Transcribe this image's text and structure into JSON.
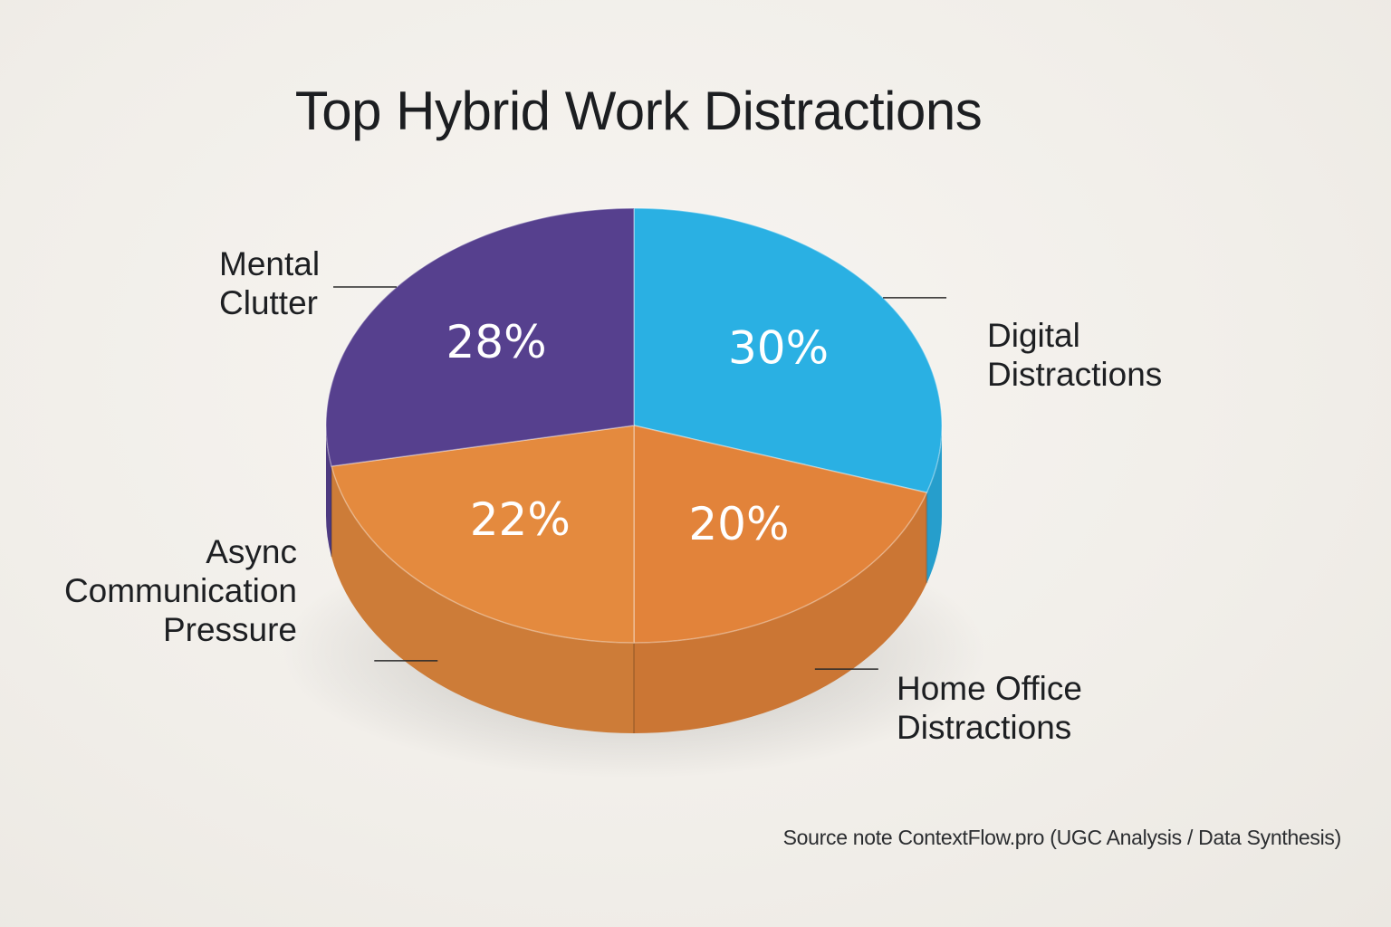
{
  "chart_data": {
    "type": "pie",
    "title": "Top Hybrid Work Distractions",
    "slices": [
      {
        "key": "digital",
        "label_lines": [
          "Digital",
          "Distractions"
        ],
        "value": 30,
        "value_label": "30%",
        "color": "#2ab0e3"
      },
      {
        "key": "home",
        "label_lines": [
          "Home Office",
          "Distractions"
        ],
        "value": 20,
        "value_label": "20%",
        "color": "#e2833a"
      },
      {
        "key": "async",
        "label_lines": [
          "Async",
          "Communication",
          "Pressure"
        ],
        "value": 22,
        "value_label": "22%",
        "color": "#e48a3e"
      },
      {
        "key": "mental",
        "label_lines": [
          "Mental",
          "Clutter"
        ],
        "value": 28,
        "value_label": "28%",
        "color": "#56408e"
      }
    ],
    "source": "Source note ContextFlow.pro (UGC Analysis / Data Synthesis)"
  }
}
